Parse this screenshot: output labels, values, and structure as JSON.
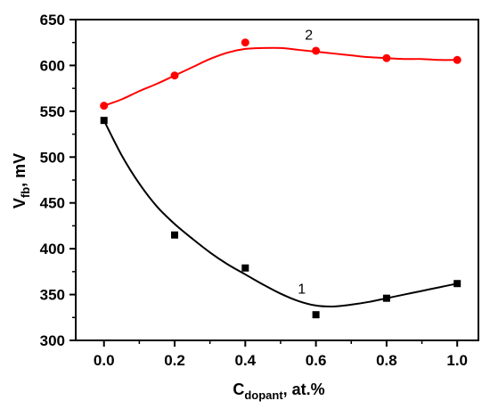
{
  "chart_data": {
    "type": "scatter",
    "title": "",
    "xlabel": {
      "main": "C",
      "sub": "dopant",
      "rest": ", at.%"
    },
    "ylabel": {
      "main": "V",
      "sub": "fb",
      "rest": ", mV"
    },
    "xlim": [
      -0.08,
      1.06
    ],
    "ylim": [
      300,
      650
    ],
    "xticks": [
      "0.0",
      "0.2",
      "0.4",
      "0.6",
      "0.8",
      "1.0"
    ],
    "yticks": [
      "300",
      "350",
      "400",
      "450",
      "500",
      "550",
      "600",
      "650"
    ],
    "grid": false,
    "series": [
      {
        "name": "1",
        "color": "#000000",
        "marker": "square",
        "x": [
          0.0,
          0.2,
          0.4,
          0.6,
          0.8,
          1.0
        ],
        "y": [
          540,
          415,
          379,
          328,
          346,
          362
        ],
        "fit": [
          [
            0.0,
            540
          ],
          [
            0.05,
            502
          ],
          [
            0.1,
            471
          ],
          [
            0.15,
            446
          ],
          [
            0.2,
            427
          ],
          [
            0.25,
            411
          ],
          [
            0.3,
            396
          ],
          [
            0.35,
            383
          ],
          [
            0.4,
            372
          ],
          [
            0.45,
            361
          ],
          [
            0.5,
            351
          ],
          [
            0.55,
            343
          ],
          [
            0.6,
            338
          ],
          [
            0.65,
            337
          ],
          [
            0.7,
            339
          ],
          [
            0.75,
            342
          ],
          [
            0.8,
            346
          ],
          [
            0.85,
            350
          ],
          [
            0.9,
            354
          ],
          [
            0.95,
            358
          ],
          [
            1.0,
            362
          ]
        ]
      },
      {
        "name": "2",
        "color": "#ff0000",
        "marker": "circle",
        "x": [
          0.0,
          0.2,
          0.4,
          0.6,
          0.8,
          1.0
        ],
        "y": [
          556,
          589,
          625,
          616,
          608,
          606
        ],
        "fit": [
          [
            0.0,
            556
          ],
          [
            0.05,
            563
          ],
          [
            0.1,
            572
          ],
          [
            0.15,
            580
          ],
          [
            0.2,
            589
          ],
          [
            0.25,
            598
          ],
          [
            0.3,
            607
          ],
          [
            0.35,
            614
          ],
          [
            0.4,
            618
          ],
          [
            0.45,
            619
          ],
          [
            0.5,
            619
          ],
          [
            0.55,
            617
          ],
          [
            0.6,
            615
          ],
          [
            0.65,
            613
          ],
          [
            0.7,
            611
          ],
          [
            0.75,
            609
          ],
          [
            0.8,
            608
          ],
          [
            0.85,
            607
          ],
          [
            0.9,
            607
          ],
          [
            0.95,
            606
          ],
          [
            1.0,
            606
          ]
        ]
      }
    ],
    "annotations": [
      {
        "text": "1",
        "x": 0.56,
        "y": 351
      },
      {
        "text": "2",
        "x": 0.58,
        "y": 628
      }
    ]
  }
}
